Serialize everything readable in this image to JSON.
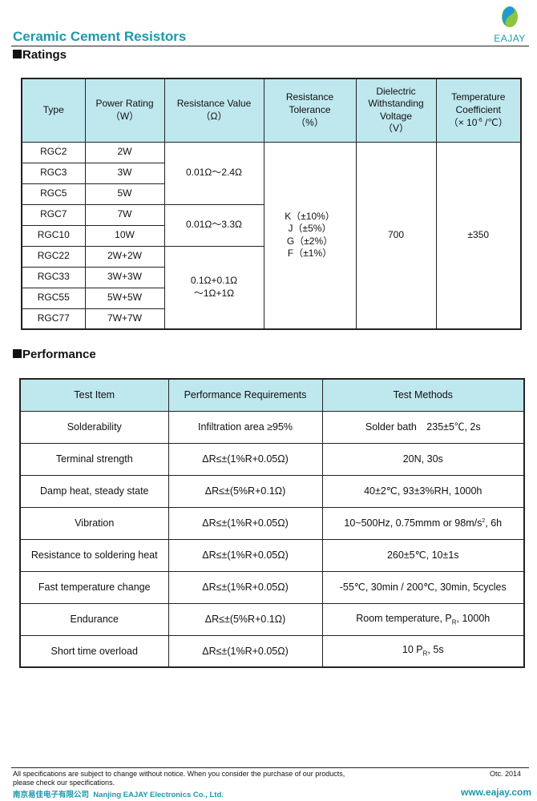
{
  "header": {
    "title": "Ceramic Cement Resistors",
    "logo_text": "EAJAY"
  },
  "ratings": {
    "section_title": "Ratings",
    "headers": {
      "type": "Type",
      "power": "Power Rating",
      "power_unit": "（W）",
      "value": "Resistance Value",
      "value_unit": "（Ω）",
      "tol": "Resistance Tolerance",
      "tol_unit": "（%）",
      "dv": "Dielectric Withstanding Voltage",
      "dv_unit": "（V）",
      "tc": "Temperature Coefficient",
      "tc_unit_pre": "（× 10",
      "tc_unit_exp": "-6",
      "tc_unit_post": " /℃）"
    },
    "rows": [
      {
        "type": "RGC2",
        "power": "2W"
      },
      {
        "type": "RGC3",
        "power": "3W"
      },
      {
        "type": "RGC5",
        "power": "5W"
      },
      {
        "type": "RGC7",
        "power": "7W"
      },
      {
        "type": "RGC10",
        "power": "10W"
      },
      {
        "type": "RGC22",
        "power": "2W+2W"
      },
      {
        "type": "RGC33",
        "power": "3W+3W"
      },
      {
        "type": "RGC55",
        "power": "5W+5W"
      },
      {
        "type": "RGC77",
        "power": "7W+7W"
      }
    ],
    "values": [
      "0.01Ω～2.4Ω",
      "0.01Ω～3.3Ω",
      "0.1Ω+0.1Ω",
      "～1Ω+1Ω"
    ],
    "tolerances": [
      "K（±10%）",
      "J（±5%）",
      "G（±2%）",
      "F（±1%）"
    ],
    "voltage": "700",
    "tc": "±350"
  },
  "performance": {
    "section_title": "Performance",
    "headers": [
      "Test Item",
      "Performance Requirements",
      "Test Methods"
    ],
    "rows": [
      {
        "item": "Solderability",
        "req": "Infiltration area ≥95%",
        "method": "Solder bath　235±5℃, 2s"
      },
      {
        "item": "Terminal strength",
        "req": "ΔR≤±(1%R+0.05Ω)",
        "method": "20N, 30s"
      },
      {
        "item": "Damp heat, steady state",
        "req": "ΔR≤±(5%R+0.1Ω)",
        "method": "40±2℃, 93±3%RH, 1000h"
      },
      {
        "item": "Vibration",
        "req": "ΔR≤±(1%R+0.05Ω)",
        "method": "10~500Hz, 0.75mmm or 98m/s",
        "method_sup": "2",
        "method_post": ", 6h"
      },
      {
        "item": "Resistance to soldering heat",
        "req": "ΔR≤±(1%R+0.05Ω)",
        "method": "260±5℃, 10±1s"
      },
      {
        "item": "Fast temperature change",
        "req": "ΔR≤±(1%R+0.05Ω)",
        "method": "-55℃, 30min / 200℃, 30min, 5cycles"
      },
      {
        "item": "Endurance",
        "req": "ΔR≤±(5%R+0.1Ω)",
        "method": "Room temperature, P",
        "method_sub": "R",
        "method_post": ", 1000h"
      },
      {
        "item": "Short time overload",
        "req": "ΔR≤±(1%R+0.05Ω)",
        "method": "10 P",
        "method_sub": "R",
        "method_post": ", 5s"
      }
    ]
  },
  "footer": {
    "notice1": "All specifications are subject to change without notice. When you consider the purchase of our products,",
    "notice2": "please check our specifications.",
    "date": "Otc. 2014",
    "company_cn": "南京易佳电子有限公司",
    "company_en": "Nanjing EAJAY Electronics Co., Ltd.",
    "website": "www.eajay.com"
  }
}
